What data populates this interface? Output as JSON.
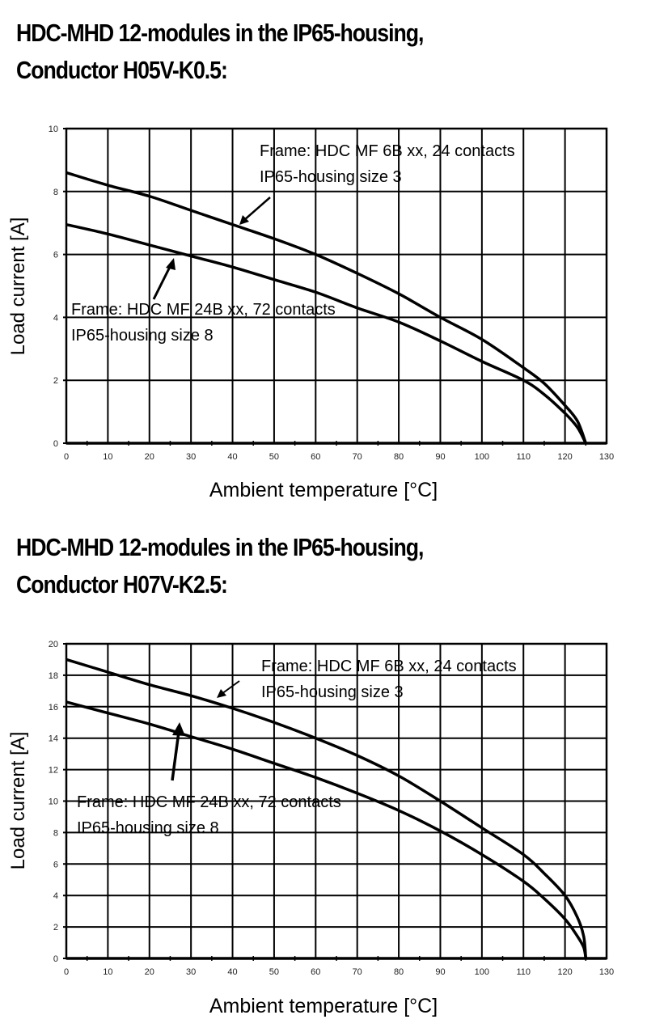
{
  "charts": [
    {
      "title_line1": "HDC-MHD 12-modules in the IP65-housing,",
      "title_line2": "Conductor H05V-K0.5:",
      "ylabel": "Load current [A]",
      "xlabel": "Ambient temperature [°C]",
      "annotation_top_line1": "Frame: HDC MF 6B xx, 24 contacts",
      "annotation_top_line2": "IP65-housing size 3",
      "annotation_bottom_line1": "Frame: HDC MF 24B xx, 72 contacts",
      "annotation_bottom_line2": "IP65-housing size 8"
    },
    {
      "title_line1": "HDC-MHD 12-modules in the IP65-housing,",
      "title_line2": "Conductor H07V-K2.5:",
      "ylabel": "Load current [A]",
      "xlabel": "Ambient temperature [°C]",
      "annotation_top_line1": "Frame: HDC MF 6B xx, 24 contacts",
      "annotation_top_line2": "IP65-housing size 3",
      "annotation_bottom_line1": "Frame: HDC MF 24B xx, 72 contacts",
      "annotation_bottom_line2": "IP65-housing size 8"
    }
  ],
  "chart_data": [
    {
      "type": "line",
      "title": "HDC-MHD 12-modules in the IP65-housing, Conductor H05V-K0.5:",
      "xlabel": "Ambient temperature [°C]",
      "ylabel": "Load current [A]",
      "xlim": [
        0,
        130
      ],
      "ylim": [
        0,
        10
      ],
      "x_ticks": [
        0,
        10,
        20,
        30,
        40,
        50,
        60,
        70,
        80,
        90,
        100,
        110,
        120,
        130
      ],
      "y_ticks": [
        0,
        2,
        4,
        6,
        8,
        10
      ],
      "grid": true,
      "legend": "none (curves labeled with arrow annotations)",
      "x": [
        0,
        10,
        20,
        30,
        40,
        50,
        60,
        70,
        80,
        90,
        100,
        110,
        115,
        120,
        123,
        125
      ],
      "series": [
        {
          "name": "Frame: HDC MF 6B xx, 24 contacts / IP65-housing size 3",
          "values": [
            8.6,
            8.2,
            7.85,
            7.4,
            6.95,
            6.5,
            6.0,
            5.4,
            4.75,
            4.0,
            3.3,
            2.4,
            1.9,
            1.2,
            0.7,
            0
          ]
        },
        {
          "name": "Frame: HDC MF 24B xx, 72 contacts / IP65-housing size 8",
          "values": [
            6.95,
            6.65,
            6.3,
            5.95,
            5.6,
            5.2,
            4.8,
            4.3,
            3.85,
            3.25,
            2.6,
            2.0,
            1.55,
            0.95,
            0.5,
            0
          ]
        }
      ]
    },
    {
      "type": "line",
      "title": "HDC-MHD 12-modules in the IP65-housing, Conductor H07V-K2.5:",
      "xlabel": "Ambient temperature [°C]",
      "ylabel": "Load current [A]",
      "xlim": [
        0,
        130
      ],
      "ylim": [
        0,
        20
      ],
      "x_ticks": [
        0,
        10,
        20,
        30,
        40,
        50,
        60,
        70,
        80,
        90,
        100,
        110,
        120,
        130
      ],
      "y_ticks": [
        0,
        2,
        4,
        6,
        8,
        10,
        12,
        14,
        16,
        18,
        20
      ],
      "grid": true,
      "legend": "none (curves labeled with arrow annotations)",
      "x": [
        0,
        10,
        20,
        30,
        40,
        50,
        60,
        70,
        80,
        90,
        100,
        110,
        115,
        120,
        123,
        124.5,
        125
      ],
      "series": [
        {
          "name": "Frame: HDC MF 6B xx, 24 contacts / IP65-housing size 3",
          "values": [
            19.0,
            18.2,
            17.4,
            16.7,
            15.9,
            15.0,
            14.0,
            12.9,
            11.6,
            10.0,
            8.3,
            6.6,
            5.4,
            4.0,
            2.6,
            1.4,
            0
          ]
        },
        {
          "name": "Frame: HDC MF 24B xx, 72 contacts / IP65-housing size 8",
          "values": [
            16.3,
            15.6,
            14.9,
            14.1,
            13.3,
            12.4,
            11.5,
            10.5,
            9.4,
            8.1,
            6.6,
            4.9,
            3.8,
            2.5,
            1.4,
            0.7,
            0
          ]
        }
      ]
    }
  ]
}
